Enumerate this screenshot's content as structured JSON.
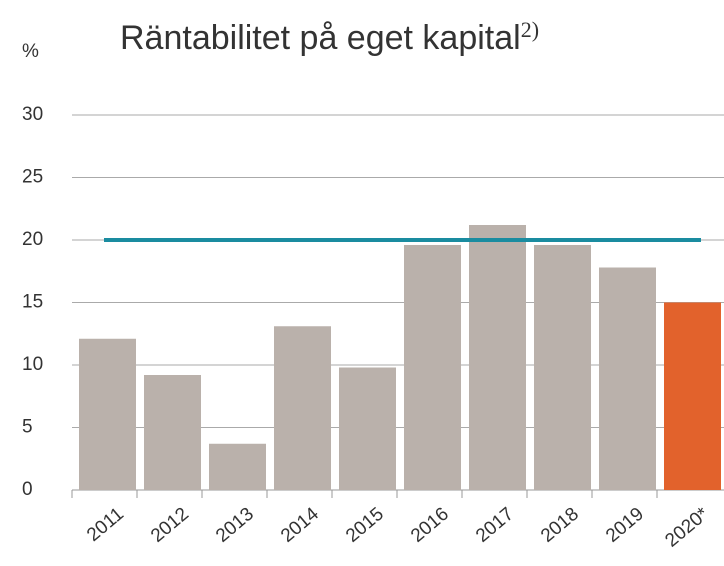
{
  "chart_data": {
    "type": "bar",
    "title": "Räntabilitet på eget kapital",
    "title_note": "2)",
    "y_label": "%",
    "categories": [
      "2011",
      "2012",
      "2013",
      "2014",
      "2015",
      "2016",
      "2017",
      "2018",
      "2019",
      "2020*"
    ],
    "values": [
      12.1,
      9.2,
      3.7,
      13.1,
      9.8,
      19.6,
      21.2,
      19.6,
      17.8,
      15
    ],
    "colors": [
      "#bab1ab",
      "#bab1ab",
      "#bab1ab",
      "#bab1ab",
      "#bab1ab",
      "#bab1ab",
      "#bab1ab",
      "#bab1ab",
      "#bab1ab",
      "#e2622c"
    ],
    "reference_line": {
      "value": 20,
      "color": "#1a8ca0"
    },
    "ylim": [
      0,
      30
    ],
    "yticks": [
      0,
      5,
      10,
      15,
      20,
      25,
      30
    ],
    "grid": true
  }
}
